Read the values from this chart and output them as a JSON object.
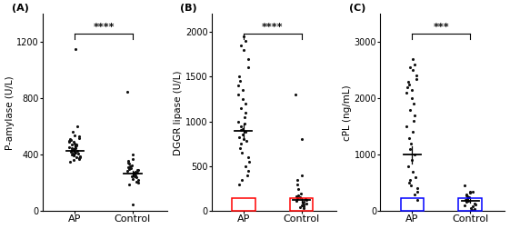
{
  "panel_A": {
    "label": "(A)",
    "ylabel": "P-amylase (U/L)",
    "ylim": [
      0,
      1400
    ],
    "yticks": [
      0,
      400,
      800,
      1200
    ],
    "xlabel_AP": "AP",
    "xlabel_Control": "Control",
    "significance": "****",
    "AP_mean": 430,
    "AP_sem": 35,
    "Control_mean": 265,
    "Control_sem": 18,
    "AP_dots": [
      1150,
      600,
      560,
      540,
      530,
      520,
      510,
      505,
      500,
      495,
      490,
      480,
      475,
      470,
      465,
      460,
      455,
      450,
      445,
      440,
      435,
      430,
      425,
      420,
      415,
      410,
      405,
      400,
      395,
      390,
      385,
      380,
      375,
      370,
      360,
      350
    ],
    "Control_dots": [
      850,
      400,
      370,
      355,
      345,
      335,
      325,
      315,
      310,
      305,
      300,
      295,
      290,
      285,
      280,
      275,
      270,
      265,
      260,
      255,
      250,
      245,
      240,
      230,
      220,
      210,
      200,
      190,
      50
    ]
  },
  "panel_B": {
    "label": "(B)",
    "ylabel": "DGGR lipase (U/L)",
    "ylim": [
      0,
      2200
    ],
    "yticks": [
      0,
      500,
      1000,
      1500,
      2000
    ],
    "xlabel_AP": "AP",
    "xlabel_Control": "Control",
    "significance": "****",
    "AP_mean": 890,
    "AP_sem": 90,
    "Control_mean": 120,
    "Control_sem": 25,
    "box_AP_color": "#FF0000",
    "box_Control_color": "#FF0000",
    "AP_dots": [
      1950,
      1900,
      1850,
      1800,
      1700,
      1600,
      1500,
      1450,
      1400,
      1350,
      1300,
      1250,
      1200,
      1150,
      1100,
      1050,
      1000,
      980,
      950,
      920,
      900,
      880,
      850,
      820,
      800,
      780,
      750,
      700,
      650,
      600,
      550,
      500,
      450,
      400,
      350,
      300
    ],
    "Control_dots": [
      1300,
      800,
      400,
      350,
      300,
      250,
      200,
      180,
      160,
      150,
      140,
      130,
      120,
      110,
      100,
      90,
      80,
      70,
      60,
      50,
      40,
      30
    ]
  },
  "panel_C": {
    "label": "(C)",
    "ylabel": "cPL (ng/mL)",
    "ylim": [
      0,
      3500
    ],
    "yticks": [
      0,
      1000,
      2000,
      3000
    ],
    "xlabel_AP": "AP",
    "xlabel_Control": "Control",
    "significance": "***",
    "AP_mean": 1000,
    "AP_sem": 150,
    "Control_mean": 180,
    "Control_sem": 30,
    "box_AP_color": "#0000FF",
    "box_Control_color": "#0000FF",
    "AP_dots": [
      2700,
      2600,
      2550,
      2500,
      2400,
      2350,
      2300,
      2250,
      2200,
      2150,
      2100,
      2000,
      1900,
      1800,
      1700,
      1600,
      1500,
      1400,
      1300,
      1200,
      1100,
      1000,
      900,
      800,
      700,
      600,
      550,
      500,
      450,
      400,
      350,
      300,
      200
    ],
    "Control_dots": [
      450,
      350,
      320,
      300,
      280,
      260,
      240,
      220,
      200,
      180,
      160,
      140,
      120,
      100,
      80,
      60,
      40,
      20,
      10,
      350
    ]
  },
  "dot_color": "#111111",
  "dot_size": 5,
  "mean_line_color": "#000000",
  "background_color": "#ffffff",
  "label_fontsize": 8,
  "tick_fontsize": 7,
  "xlabel_fontsize": 8,
  "ylabel_fontsize": 7.5,
  "sig_fontsize": 8
}
